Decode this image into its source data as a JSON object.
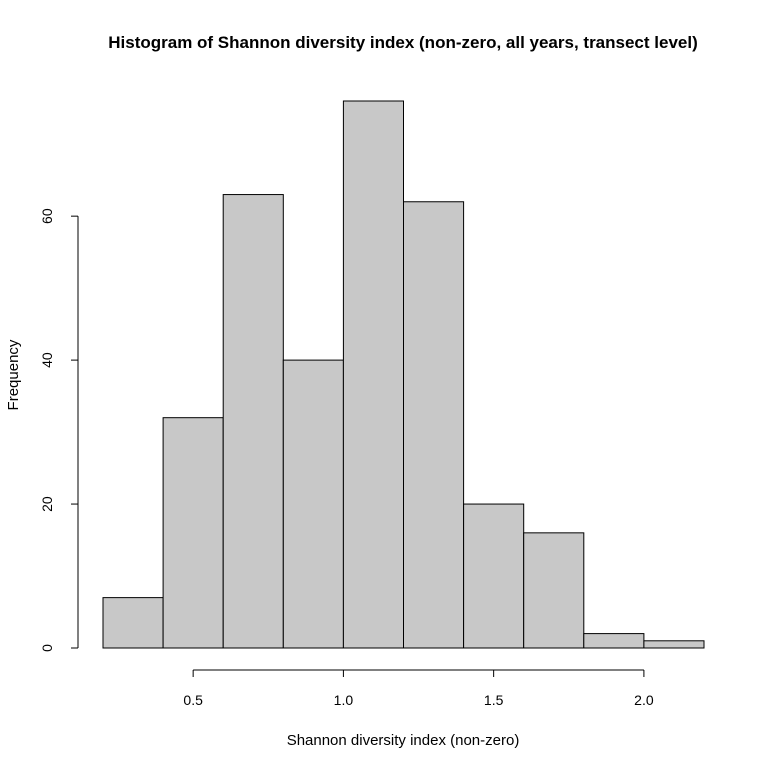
{
  "chart_data": {
    "type": "bar",
    "title": "Histogram of Shannon diversity index (non-zero, all years, transect level)",
    "xlabel": "Shannon diversity index (non-zero)",
    "ylabel": "Frequency",
    "bins": [
      {
        "start": 0.2,
        "end": 0.4,
        "count": 7
      },
      {
        "start": 0.4,
        "end": 0.6,
        "count": 32
      },
      {
        "start": 0.6,
        "end": 0.8,
        "count": 63
      },
      {
        "start": 0.8,
        "end": 1.0,
        "count": 40
      },
      {
        "start": 1.0,
        "end": 1.2,
        "count": 76
      },
      {
        "start": 1.2,
        "end": 1.4,
        "count": 62
      },
      {
        "start": 1.4,
        "end": 1.6,
        "count": 20
      },
      {
        "start": 1.6,
        "end": 1.8,
        "count": 16
      },
      {
        "start": 1.8,
        "end": 2.0,
        "count": 2
      },
      {
        "start": 2.0,
        "end": 2.2,
        "count": 1
      }
    ],
    "x_ticks": [
      "0.5",
      "1.0",
      "1.5",
      "2.0"
    ],
    "x_tick_values": [
      0.5,
      1.0,
      1.5,
      2.0
    ],
    "y_ticks": [
      "0",
      "20",
      "40",
      "60"
    ],
    "y_tick_values": [
      0,
      20,
      40,
      60
    ],
    "xlim": [
      0.2,
      2.2
    ],
    "ylim": [
      0,
      76
    ],
    "grid": false,
    "bar_color": "#c8c8c8",
    "edge_color": "#000000"
  }
}
